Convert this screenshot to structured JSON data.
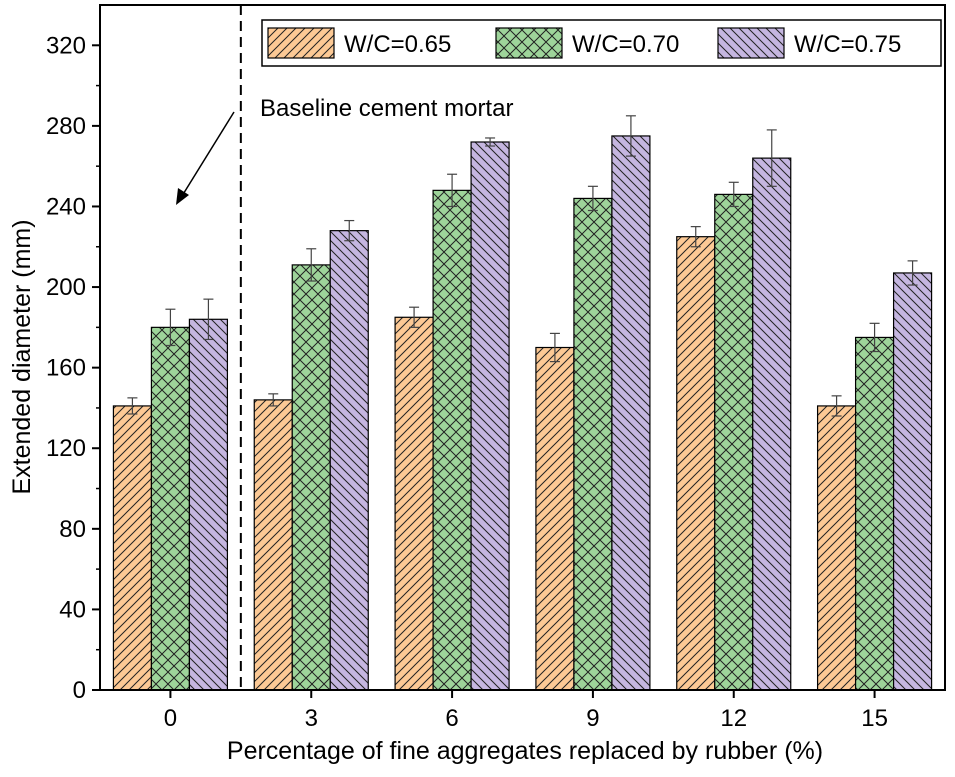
{
  "chart_data": {
    "type": "bar",
    "title": "",
    "xlabel": "Percentage of fine aggregates replaced by rubber (%)",
    "ylabel": "Extended diameter (mm)",
    "ylim": [
      0,
      340
    ],
    "yticks": [
      0,
      40,
      80,
      120,
      160,
      200,
      240,
      280,
      320
    ],
    "categories": [
      "0",
      "3",
      "6",
      "9",
      "12",
      "15"
    ],
    "series": [
      {
        "name": "W/C=0.65",
        "color": "#fcc995",
        "pattern": "diagonal-up",
        "values": [
          141,
          144,
          185,
          170,
          225,
          141
        ],
        "errors": [
          4,
          3,
          5,
          7,
          5,
          5
        ]
      },
      {
        "name": "W/C=0.70",
        "color": "#9ed49a",
        "pattern": "crosshatch",
        "values": [
          180,
          211,
          248,
          244,
          246,
          175
        ],
        "errors": [
          9,
          8,
          8,
          6,
          6,
          7
        ]
      },
      {
        "name": "W/C=0.75",
        "color": "#c5b6e0",
        "pattern": "diagonal-down",
        "values": [
          184,
          228,
          272,
          275,
          264,
          207
        ],
        "errors": [
          10,
          5,
          2,
          10,
          14,
          6
        ]
      }
    ],
    "legend": {
      "position": "top-right",
      "columns": 3
    },
    "annotation": {
      "text": "Baseline cement mortar"
    },
    "separator": {
      "after_category": "0",
      "style": "dashed"
    }
  }
}
